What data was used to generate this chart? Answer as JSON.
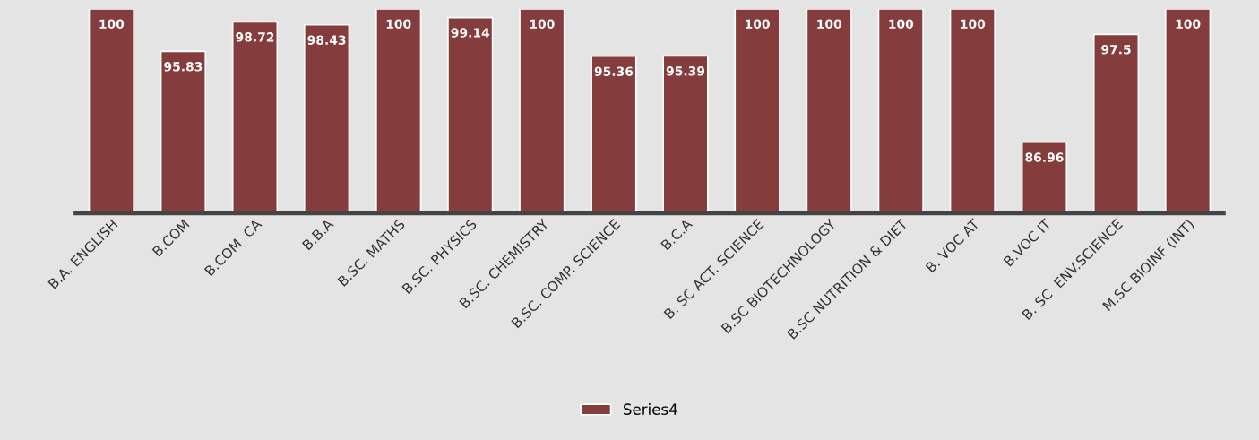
{
  "chart_data": {
    "type": "bar",
    "categories": [
      "B.A. ENGLISH",
      "B.COM",
      "B.COM  CA",
      "B.B.A",
      "B.SC. MATHS",
      "B.SC. PHYSICS",
      "B.SC. CHEMISTRY",
      "B.SC. COMP. SCIENCE",
      "B.C.A",
      "B. SC ACT. SCIENCE",
      "B.SC BIOTECHNOLOGY",
      "B.SC NUTRITION & DIET",
      "B. VOC AT",
      "B.VOC IT",
      "B. SC  ENV.SCIENCE",
      "M.SC BIOINF (INT)"
    ],
    "series": [
      {
        "name": "Series4",
        "color": "#843c3c",
        "values": [
          100,
          95.83,
          98.72,
          98.43,
          100,
          99.14,
          100,
          95.36,
          95.39,
          100,
          100,
          100,
          100,
          86.96,
          97.5,
          100
        ]
      }
    ],
    "ylim": [
      80,
      100
    ],
    "tick_labels": "x",
    "data_labels": true,
    "legend": "bottom",
    "grid": false
  }
}
